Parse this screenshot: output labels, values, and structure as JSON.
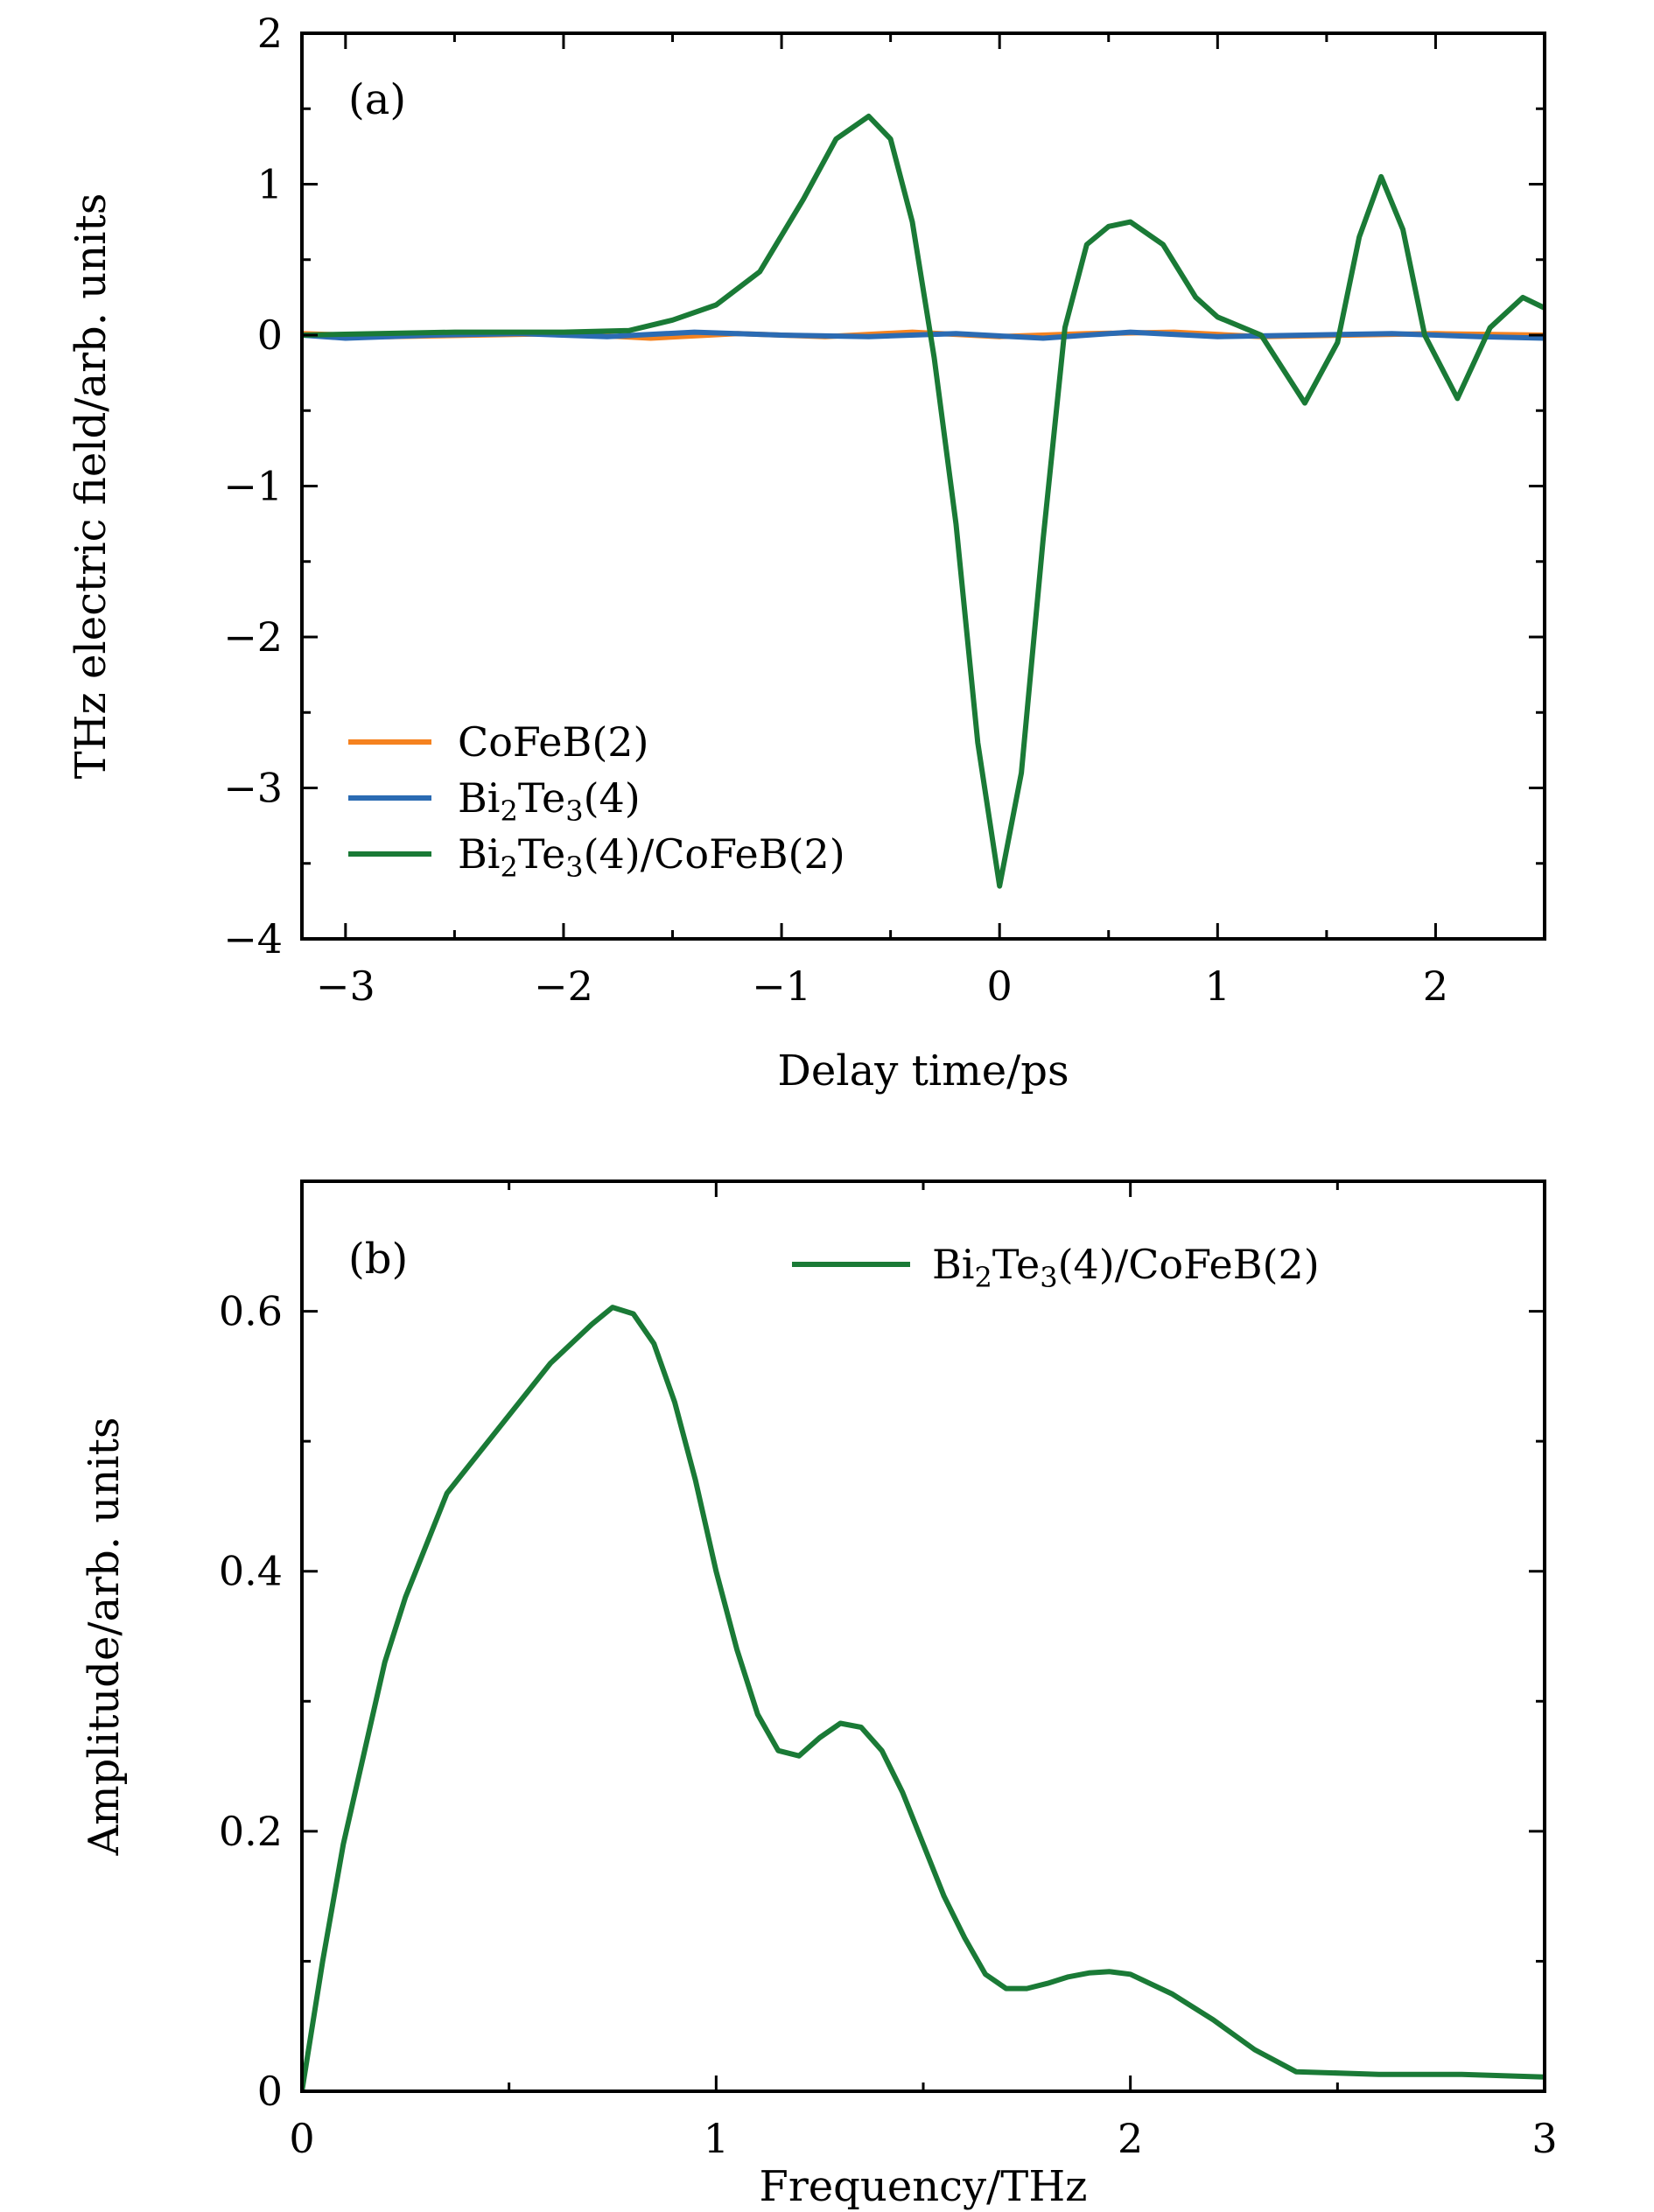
{
  "chart_data": [
    {
      "type": "line",
      "panel_label": "(a)",
      "xlabel": "Delay time/ps",
      "ylabel": "THz electric field/arb. units",
      "xlim": [
        -3.2,
        2.5
      ],
      "ylim": [
        -4,
        2
      ],
      "xticks": [
        -3,
        -2,
        -1,
        0,
        1,
        2
      ],
      "xtick_labels": [
        "−3",
        "−2",
        "−1",
        "0",
        "1",
        "2"
      ],
      "xminor": [
        -2.5,
        -1.5,
        -0.5,
        0.5,
        1.5
      ],
      "yticks": [
        -4,
        -3,
        -2,
        -1,
        0,
        1,
        2
      ],
      "ytick_labels": [
        "−4",
        "−3",
        "−2",
        "−1",
        "0",
        "1",
        "2"
      ],
      "yminor": [
        -3.5,
        -2.5,
        -1.5,
        -0.5,
        0.5,
        1.5
      ],
      "legend_position": "lower-left",
      "series": [
        {
          "name": "CoFeB(2)",
          "legend": [
            "CoFeB(2)"
          ],
          "color": "#f5821f",
          "x": [
            -3.2,
            -2.8,
            -2.4,
            -2.0,
            -1.6,
            -1.2,
            -0.8,
            -0.4,
            0.0,
            0.4,
            0.8,
            1.2,
            1.6,
            2.0,
            2.5
          ],
          "y": [
            0.01,
            -0.01,
            0.0,
            0.01,
            -0.02,
            0.01,
            -0.01,
            0.02,
            -0.01,
            0.01,
            0.02,
            -0.01,
            0.0,
            0.01,
            0.0
          ]
        },
        {
          "name": "Bi2Te3(4)",
          "legend": [
            "Bi",
            "2",
            "Te",
            "3",
            "(4)"
          ],
          "color": "#2b6bb3",
          "x": [
            -3.2,
            -3.0,
            -2.6,
            -2.2,
            -1.8,
            -1.4,
            -1.0,
            -0.6,
            -0.2,
            0.2,
            0.6,
            1.0,
            1.4,
            1.8,
            2.2,
            2.5
          ],
          "y": [
            0.0,
            -0.02,
            0.0,
            0.01,
            -0.01,
            0.02,
            0.0,
            -0.01,
            0.01,
            -0.02,
            0.02,
            -0.01,
            0.0,
            0.01,
            -0.01,
            -0.02
          ]
        },
        {
          "name": "Bi2Te3(4)/CoFeB(2)",
          "legend": [
            "Bi",
            "2",
            "Te",
            "3",
            "(4)/CoFeB(2)"
          ],
          "color": "#1a7a36",
          "x": [
            -3.2,
            -2.5,
            -2.0,
            -1.7,
            -1.5,
            -1.3,
            -1.1,
            -0.9,
            -0.75,
            -0.6,
            -0.5,
            -0.4,
            -0.3,
            -0.2,
            -0.1,
            0.0,
            0.1,
            0.2,
            0.3,
            0.4,
            0.5,
            0.6,
            0.75,
            0.9,
            1.0,
            1.2,
            1.4,
            1.55,
            1.65,
            1.75,
            1.85,
            1.95,
            2.1,
            2.25,
            2.4,
            2.5
          ],
          "y": [
            0.0,
            0.02,
            0.02,
            0.03,
            0.1,
            0.2,
            0.42,
            0.9,
            1.3,
            1.45,
            1.3,
            0.75,
            -0.15,
            -1.25,
            -2.7,
            -3.65,
            -2.9,
            -1.35,
            0.05,
            0.6,
            0.72,
            0.75,
            0.6,
            0.25,
            0.12,
            0.0,
            -0.45,
            -0.05,
            0.65,
            1.05,
            0.7,
            0.0,
            -0.42,
            0.05,
            0.25,
            0.18
          ]
        }
      ]
    },
    {
      "type": "line",
      "panel_label": "(b)",
      "xlabel": "Frequency/THz",
      "ylabel": "Amplitude/arb. units",
      "xlim": [
        0,
        3
      ],
      "ylim": [
        0,
        0.7
      ],
      "xticks": [
        0,
        1,
        2,
        3
      ],
      "xtick_labels": [
        "0",
        "1",
        "2",
        "3"
      ],
      "xminor": [
        0.5,
        1.5,
        2.5
      ],
      "yticks": [
        0,
        0.2,
        0.4,
        0.6
      ],
      "ytick_labels": [
        "0",
        "0.2",
        "0.4",
        "0.6"
      ],
      "yminor": [
        0.1,
        0.3,
        0.5
      ],
      "legend_position": "top-right",
      "series": [
        {
          "name": "Bi2Te3(4)/CoFeB(2)",
          "legend": [
            "Bi",
            "2",
            "Te",
            "3",
            "(4)/CoFeB(2)"
          ],
          "color": "#1a7a36",
          "x": [
            0.0,
            0.05,
            0.1,
            0.15,
            0.2,
            0.25,
            0.3,
            0.35,
            0.4,
            0.5,
            0.6,
            0.7,
            0.75,
            0.8,
            0.85,
            0.9,
            0.95,
            1.0,
            1.05,
            1.1,
            1.15,
            1.2,
            1.25,
            1.3,
            1.35,
            1.4,
            1.45,
            1.5,
            1.55,
            1.6,
            1.65,
            1.7,
            1.75,
            1.8,
            1.85,
            1.9,
            1.95,
            2.0,
            2.1,
            2.2,
            2.3,
            2.4,
            2.6,
            2.8,
            3.0
          ],
          "y": [
            0.0,
            0.1,
            0.19,
            0.26,
            0.33,
            0.38,
            0.42,
            0.46,
            0.48,
            0.52,
            0.56,
            0.59,
            0.603,
            0.598,
            0.575,
            0.53,
            0.47,
            0.4,
            0.34,
            0.29,
            0.262,
            0.258,
            0.272,
            0.283,
            0.28,
            0.262,
            0.23,
            0.19,
            0.15,
            0.118,
            0.09,
            0.079,
            0.079,
            0.083,
            0.088,
            0.091,
            0.092,
            0.09,
            0.075,
            0.055,
            0.032,
            0.015,
            0.013,
            0.013,
            0.011
          ]
        }
      ]
    }
  ]
}
